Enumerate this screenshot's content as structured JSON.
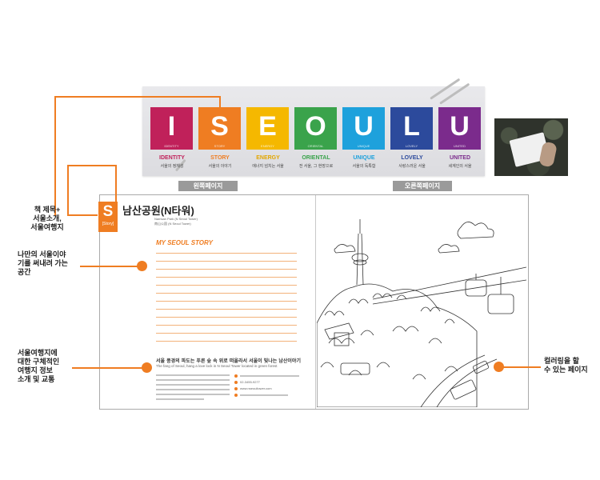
{
  "banner": {
    "tiles": [
      {
        "letter": "I",
        "word": "IDENTITY",
        "sub": "서울의 정체성",
        "color": "#c0215a",
        "tiny": "IDENTITY"
      },
      {
        "letter": "S",
        "word": "STORY",
        "sub": "서울의 이야기",
        "color": "#ef7d22",
        "tiny": "STORY"
      },
      {
        "letter": "E",
        "word": "ENERGY",
        "sub": "에너지 넘치는 서울",
        "color": "#f5b800",
        "tiny": "ENERGY"
      },
      {
        "letter": "O",
        "word": "ORIENTAL",
        "sub": "전 서울, 그 현장으로",
        "color": "#3aa34b",
        "tiny": "ORIENTAL"
      },
      {
        "letter": "U",
        "word": "UNIQUE",
        "sub": "서울의 독특함",
        "color": "#1ea1dc",
        "tiny": "UNIQUE"
      },
      {
        "letter": "L",
        "word": "LOVELY",
        "sub": "사랑스러운 서울",
        "color": "#2c4a9c",
        "tiny": "LOVELY"
      },
      {
        "letter": "U",
        "word": "UNITED",
        "sub": "세계인의 서울",
        "color": "#7b2b8c",
        "tiny": "UNITED"
      }
    ],
    "tab_left": "왼쪽페이지",
    "tab_right": "오른쪽페이지"
  },
  "book": {
    "badge_letter": "S",
    "badge_sub": "[Story]",
    "title": "남산공원(N타워)",
    "title_sub1": "Namsan Park (N Seoul Tower)",
    "title_sub2": "南山公園 (N Seoul Tower)",
    "story_heading": "MY SEOUL STORY",
    "handwritten": "서울 풍경의 파도는 푸른 숲 속 위로 떠올라서 서울이 빛나는 남산이야기",
    "handwritten_en": "The fang of Seoul, hang a love lock in N Seoul Tower located in green forest",
    "info_url": "www.nseoultower.com",
    "info_phone": "02-3455-9277"
  },
  "callouts": {
    "left1": [
      "책 제목+",
      "서울소개,",
      "서울여행지"
    ],
    "left2": [
      "나만의 서울이야",
      "기를 써내려 가는",
      "공간"
    ],
    "left3": [
      "서울여행지에",
      "대한 구체적인",
      "여행지 정보",
      "소개 및 교통"
    ],
    "right": [
      "컬러링을 할",
      "수 있는 페이지"
    ]
  },
  "colors": {
    "accent": "#ef7d22"
  }
}
